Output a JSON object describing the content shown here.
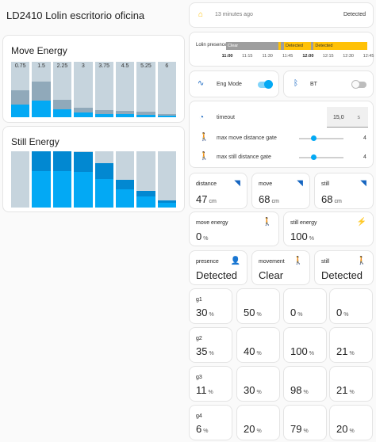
{
  "page_title": "LD2410 Lolin escritorio oficina",
  "colors": {
    "primary": "#03a9f4",
    "primary_dark": "#0288d1",
    "bar_bg": "#c6d4dd",
    "bar_mid": "#90a9ba",
    "active": "#ffc107",
    "inactive": "#9e9e9e",
    "toggle_on": "#03a9f4"
  },
  "move_energy_card": {
    "title": "Move Energy",
    "gate_labels": [
      "0.75",
      "1.5",
      "2.25",
      "3",
      "3.75",
      "4.5",
      "5.25",
      "6"
    ]
  },
  "still_energy_card": {
    "title": "Still Energy"
  },
  "chart_data": [
    {
      "type": "bar",
      "title": "Move Energy",
      "categories": [
        "0.75",
        "1.5",
        "2.25",
        "3",
        "3.75",
        "4.5",
        "5.25",
        "6"
      ],
      "series": [
        {
          "values": [
            30,
            40,
            20,
            11,
            8,
            7,
            6,
            4
          ]
        }
      ],
      "ylim": [
        0,
        100
      ]
    },
    {
      "type": "bar",
      "title": "Still Energy",
      "categories": [
        "0.75",
        "1.5",
        "2.25",
        "3",
        "3.75",
        "4.5",
        "5.25",
        "6"
      ],
      "series": [
        {
          "values": [
            0,
            100,
            100,
            98,
            79,
            49,
            30,
            13
          ]
        }
      ],
      "ylim": [
        0,
        100
      ]
    }
  ],
  "status_card": {
    "time_ago": "13 minutes ago",
    "state": "Detected",
    "icon": "home-icon"
  },
  "timeline": {
    "label": "Lolin presence",
    "segments": [
      {
        "label": "Clear",
        "state": "clear",
        "start": 0,
        "end": 0.37
      },
      {
        "label": "",
        "state": "detected",
        "start": 0.37,
        "end": 0.39
      },
      {
        "label": "",
        "state": "clear",
        "start": 0.39,
        "end": 0.41
      },
      {
        "label": "Detected",
        "state": "detected",
        "start": 0.41,
        "end": 0.6
      },
      {
        "label": "",
        "state": "clear",
        "start": 0.6,
        "end": 0.62
      },
      {
        "label": "Detected",
        "state": "detected",
        "start": 0.62,
        "end": 1.0
      }
    ],
    "ticks": [
      "11:00",
      "11:15",
      "11:30",
      "11:45",
      "12:00",
      "12:15",
      "12:30",
      "12:45"
    ]
  },
  "eng_mode": {
    "label": "Eng Mode",
    "on": true,
    "icon": "pulse-icon"
  },
  "bt": {
    "label": "BT",
    "on": false,
    "icon": "bluetooth-icon"
  },
  "config": {
    "timeout_label": "timeout",
    "timeout_value": "15,0",
    "timeout_unit": "s",
    "move_gate_label": "max move distance gate",
    "move_gate_value": "4",
    "move_gate_level": 0.33,
    "still_gate_label": "max still distance gate",
    "still_gate_value": "4",
    "still_gate_level": 0.33
  },
  "sensors": [
    {
      "name": "distance",
      "value": "47",
      "unit": "cm",
      "icon": "signal-icon"
    },
    {
      "name": "move",
      "value": "68",
      "unit": "cm",
      "icon": "signal-icon"
    },
    {
      "name": "still",
      "value": "68",
      "unit": "cm",
      "icon": "signal-icon"
    },
    {
      "name": "move energy",
      "value": "0",
      "unit": "%",
      "icon": "walk-icon"
    },
    {
      "name": "still energy",
      "value": "100",
      "unit": "%",
      "icon": "lightning-icon"
    },
    {
      "name": "presence",
      "value": "Detected",
      "unit": "",
      "icon": "person-icon"
    },
    {
      "name": "movement",
      "value": "Clear",
      "unit": "",
      "icon": "walk-icon"
    },
    {
      "name": "still",
      "value": "Detected",
      "unit": "",
      "icon": "walk-icon"
    }
  ],
  "gates": [
    {
      "label": "g1",
      "values": [
        "30",
        "50",
        "0",
        "0"
      ]
    },
    {
      "label": "g2",
      "values": [
        "35",
        "40",
        "100",
        "21"
      ]
    },
    {
      "label": "g3",
      "values": [
        "11",
        "30",
        "98",
        "21"
      ]
    },
    {
      "label": "g4",
      "values": [
        "6",
        "20",
        "79",
        "20"
      ]
    }
  ],
  "gate_unit": "%"
}
